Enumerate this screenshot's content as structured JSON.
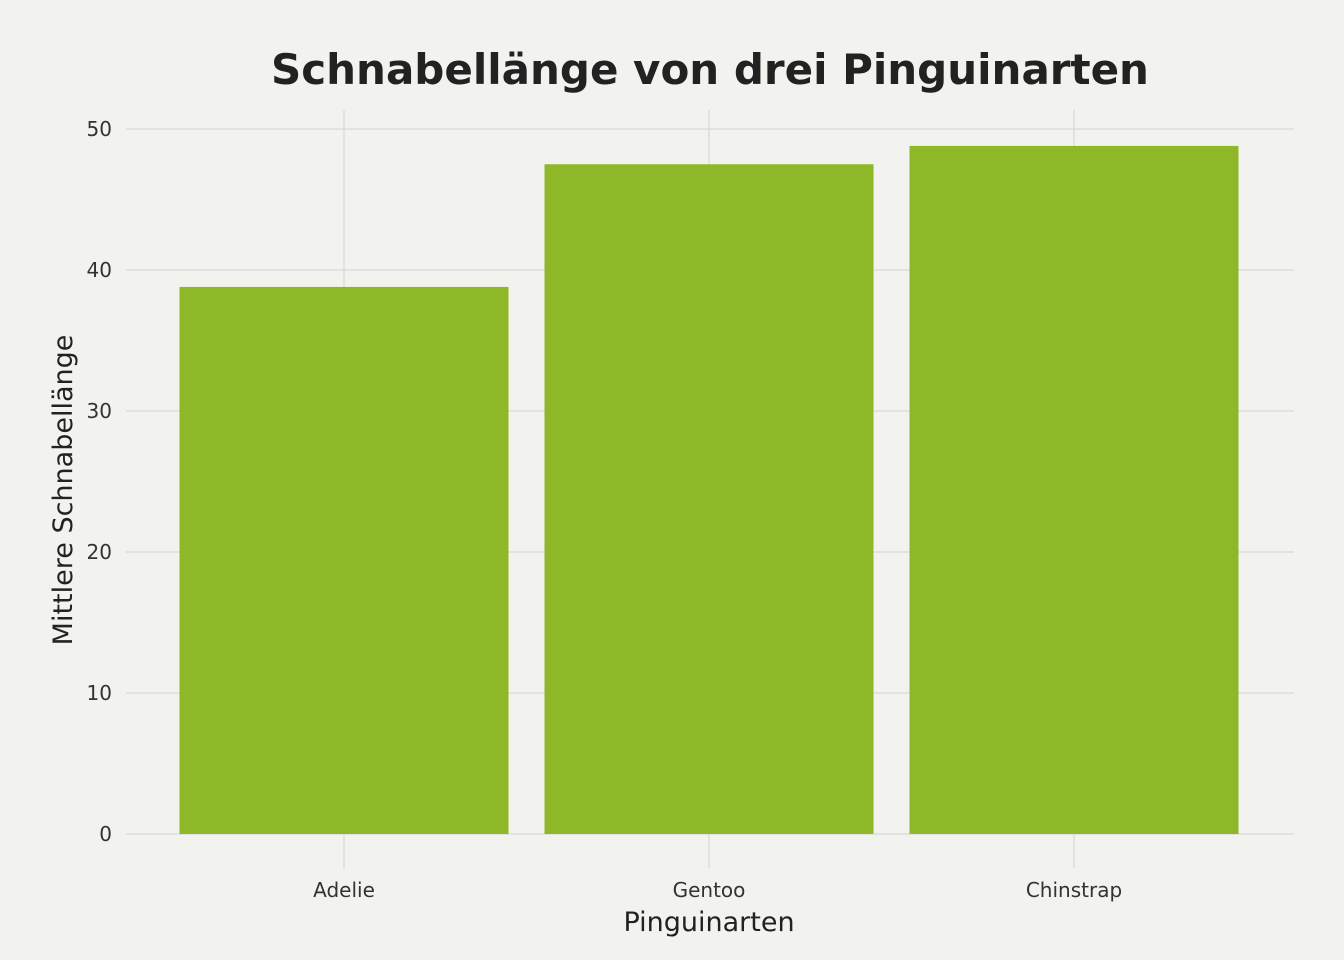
{
  "chart_data": {
    "type": "bar",
    "title": "Schnabellänge von drei Pinguinarten",
    "xlabel": "Pinguinarten",
    "ylabel": "Mittlere Schnabellänge",
    "categories": [
      "Adelie",
      "Gentoo",
      "Chinstrap"
    ],
    "values": [
      38.8,
      47.5,
      48.8
    ],
    "ylim": [
      0,
      50
    ],
    "yticks": [
      0,
      10,
      20,
      30,
      40,
      50
    ],
    "grid": true,
    "legend": "none",
    "colors": {
      "bar": "#8fb828",
      "background": "#f2f2ee",
      "grid": "#d8d8d4",
      "text": "#222222"
    }
  }
}
